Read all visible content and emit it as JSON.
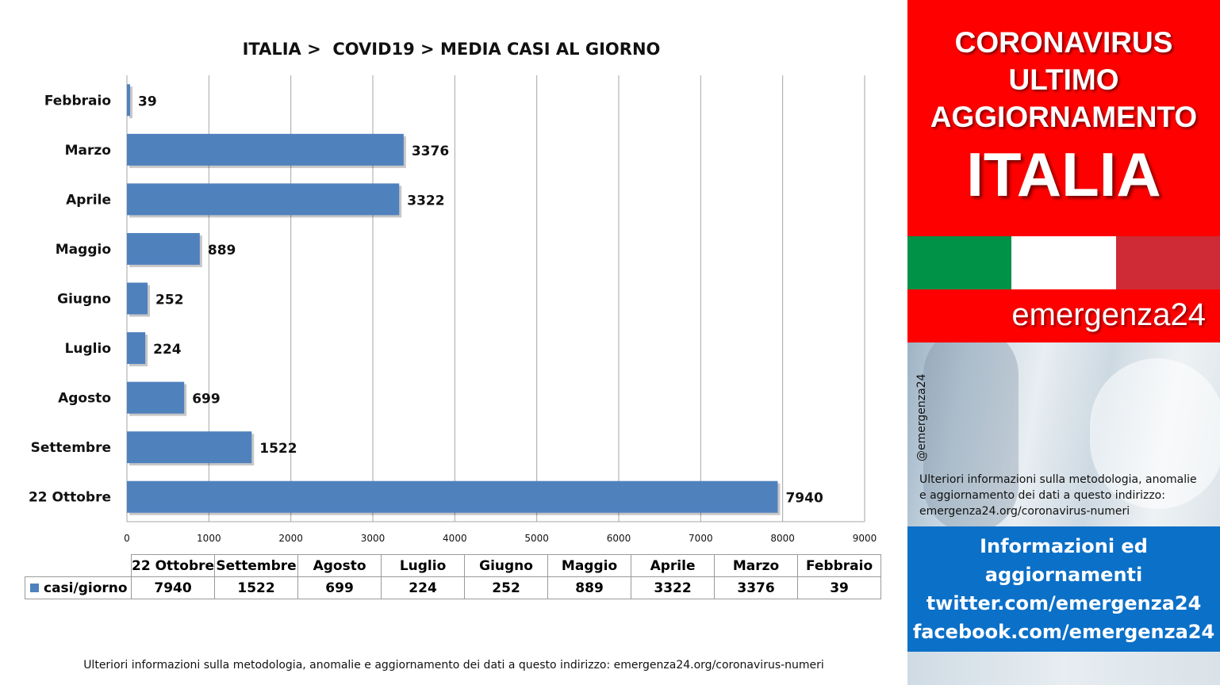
{
  "chart_data": {
    "type": "bar",
    "orientation": "horizontal",
    "title": "ITALIA >  COVID19 > MEDIA CASI AL GIORNO",
    "categories": [
      "Febbraio",
      "Marzo",
      "Aprile",
      "Maggio",
      "Giugno",
      "Luglio",
      "Agosto",
      "Settembre",
      "22 Ottobre"
    ],
    "series": [
      {
        "name": "casi/giorno",
        "values": [
          39,
          3376,
          3322,
          889,
          252,
          224,
          699,
          1522,
          7940
        ],
        "color": "#4f81bd"
      }
    ],
    "xlim": [
      0,
      9000
    ],
    "xticks": [
      0,
      1000,
      2000,
      3000,
      4000,
      5000,
      6000,
      7000,
      8000,
      9000
    ],
    "grid": "vertical",
    "data_table": {
      "columns": [
        "22 Ottobre",
        "Settembre",
        "Agosto",
        "Luglio",
        "Giugno",
        "Maggio",
        "Aprile",
        "Marzo",
        "Febbraio"
      ],
      "row_label": "casi/giorno",
      "values": [
        "7940",
        "1522",
        "699",
        "224",
        "252",
        "889",
        "3322",
        "3376",
        "39"
      ]
    }
  },
  "footnote": "Ulteriori informazioni sulla metodologia, anomalie e aggiornamento dei dati a questo indirizzo: emergenza24.org/coronavirus-numeri",
  "sidebar": {
    "headline_lines": [
      "CORONAVIRUS",
      "ULTIMO",
      "AGGIORNAMENTO"
    ],
    "country": "ITALIA",
    "flag_colors": [
      "#009246",
      "#ffffff",
      "#ce2b37"
    ],
    "brand": "emergenza24",
    "handle": "@emergenza24",
    "note_lines": [
      "Ulteriori informazioni sulla metodologia, anomalie",
      "e aggiornamento dei dati a questo indirizzo:",
      "emergenza24.org/coronavirus-numeri"
    ],
    "info_lines": [
      "Informazioni ed",
      "aggiornamenti",
      "twitter.com/emergenza24",
      "facebook.com/emergenza24"
    ]
  },
  "colors": {
    "header_red": "#ff0000",
    "info_blue": "#0b70c8",
    "bar_blue": "#4f81bd"
  }
}
